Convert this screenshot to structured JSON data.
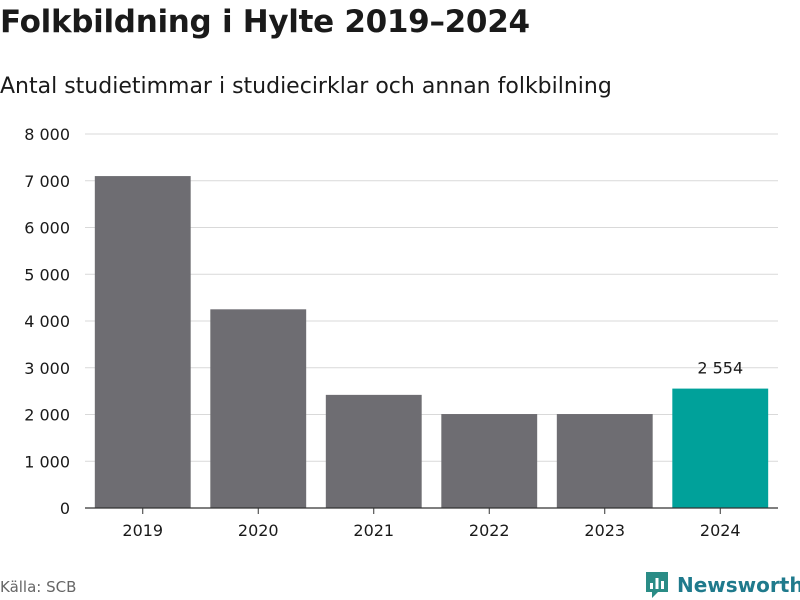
{
  "title": "Folkbildning i Hylte 2019–2024",
  "subtitle": "Antal studietimmar i studiecirklar och annan folkbilning",
  "source": "Källa: SCB",
  "brand": {
    "name": "Newsworthy",
    "icon": "bar-chart-logo-icon"
  },
  "colors": {
    "bar": "#6e6d72",
    "highlight": "#00a19a",
    "grid": "#d9d9d9",
    "axis": "#333333",
    "brand": "#1f7a8c"
  },
  "chart_data": {
    "type": "bar",
    "title": "Folkbildning i Hylte 2019–2024",
    "subtitle": "Antal studietimmar i studiecirklar och annan folkbilning",
    "categories": [
      "2019",
      "2020",
      "2021",
      "2022",
      "2023",
      "2024"
    ],
    "values": [
      7100,
      4250,
      2420,
      2010,
      2010,
      2554
    ],
    "highlight_index": 5,
    "data_labels": [
      {
        "index": 5,
        "text": "2 554"
      }
    ],
    "ylim": [
      0,
      8000
    ],
    "yticks": [
      0,
      1000,
      2000,
      3000,
      4000,
      5000,
      6000,
      7000,
      8000
    ],
    "ytick_labels": [
      "0",
      "1 000",
      "2 000",
      "3 000",
      "4 000",
      "5 000",
      "6 000",
      "7 000",
      "8 000"
    ],
    "xlabel": "",
    "ylabel": "",
    "grid": true,
    "legend": "none"
  }
}
